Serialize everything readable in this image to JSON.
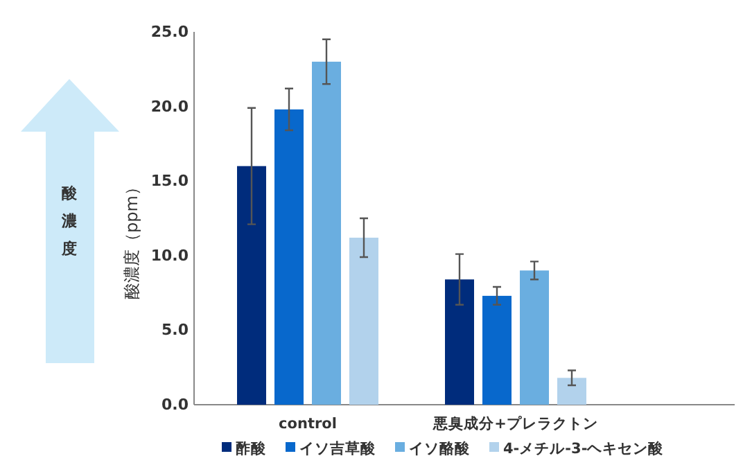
{
  "chart_data": {
    "type": "bar",
    "ylabel": "酸濃度（ppm）",
    "categories": [
      "control",
      "悪臭成分+プレラクトン"
    ],
    "series": [
      {
        "name": "酢酸",
        "color": "#002c7c",
        "values": [
          16.0,
          8.4
        ],
        "errors": [
          3.9,
          1.7
        ]
      },
      {
        "name": "イソ吉草酸",
        "color": "#0868cc",
        "values": [
          19.8,
          7.3
        ],
        "errors": [
          1.4,
          0.6
        ]
      },
      {
        "name": "イソ酪酸",
        "color": "#6aaee0",
        "values": [
          23.0,
          9.0
        ],
        "errors": [
          1.5,
          0.6
        ]
      },
      {
        "name": "4-メチル-3-ヘキセン酸",
        "color": "#b2d2ec",
        "values": [
          11.2,
          1.8
        ],
        "errors": [
          1.3,
          0.5
        ]
      }
    ],
    "ylim": [
      0,
      25
    ],
    "yticks": [
      {
        "value": 0,
        "label": "0.0"
      },
      {
        "value": 5,
        "label": "5.0"
      },
      {
        "value": 10,
        "label": "10.0"
      },
      {
        "value": 15,
        "label": "15.0"
      },
      {
        "value": 20,
        "label": "20.0"
      },
      {
        "value": 25,
        "label": "25.0"
      }
    ],
    "grid": false,
    "legend": "bottom",
    "annotations": [
      "酸濃度"
    ]
  }
}
